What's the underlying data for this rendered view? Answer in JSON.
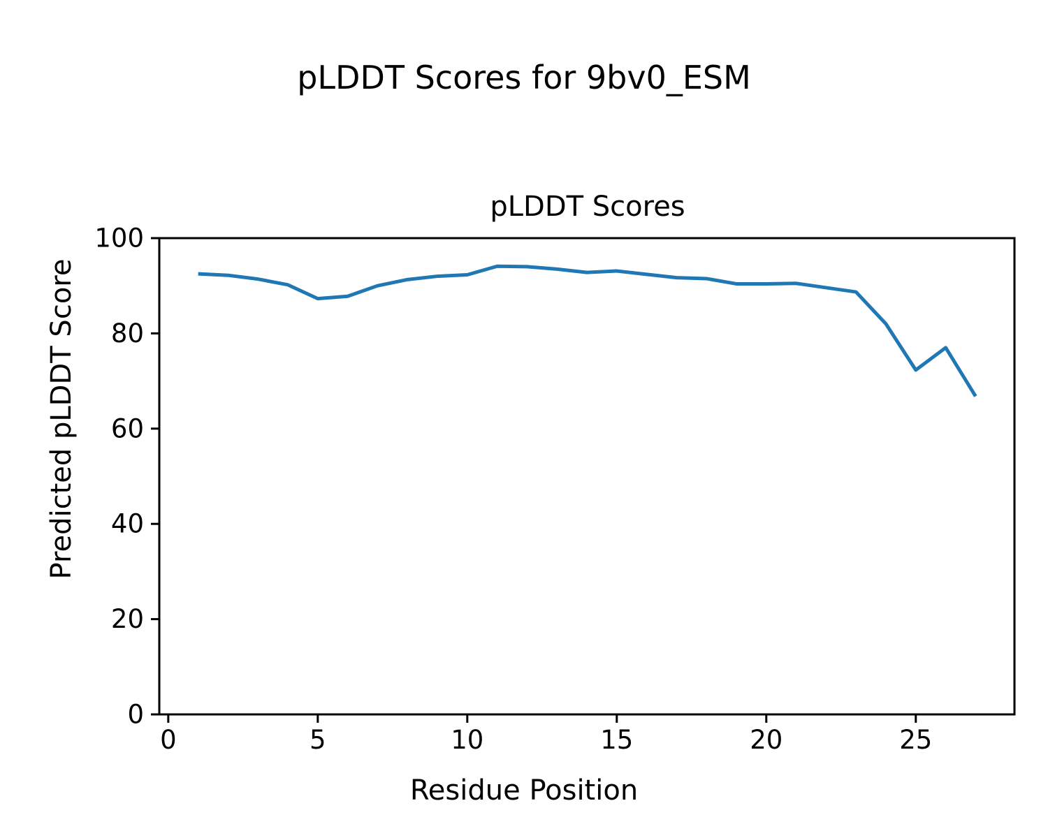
{
  "figure": {
    "suptitle": "pLDDT Scores for 9bv0_ESM",
    "background": "#ffffff",
    "text_color": "#000000"
  },
  "chart_data": {
    "type": "line",
    "title": "pLDDT Scores",
    "xlabel": "Residue Position",
    "ylabel": "Predicted pLDDT Score",
    "grid": false,
    "legend": false,
    "xlim": [
      -0.3,
      28.3
    ],
    "ylim": [
      0,
      100
    ],
    "xticks": [
      0,
      5,
      10,
      15,
      20,
      25
    ],
    "yticks": [
      0,
      20,
      40,
      60,
      80,
      100
    ],
    "line_color": "#1f77b4",
    "series": [
      {
        "x": [
          1,
          2,
          3,
          4,
          5,
          6,
          7,
          8,
          9,
          10,
          11,
          12,
          13,
          14,
          15,
          16,
          17,
          18,
          19,
          20,
          21,
          22,
          23,
          24,
          25,
          26,
          27
        ],
        "y": [
          92.5,
          92.2,
          91.4,
          90.2,
          87.3,
          87.8,
          90.0,
          91.3,
          92.0,
          92.3,
          94.1,
          94.0,
          93.5,
          92.8,
          93.1,
          92.4,
          91.7,
          91.5,
          90.4,
          90.4,
          90.5,
          89.6,
          88.7,
          82.0,
          72.3,
          77.0,
          66.8
        ]
      }
    ]
  }
}
